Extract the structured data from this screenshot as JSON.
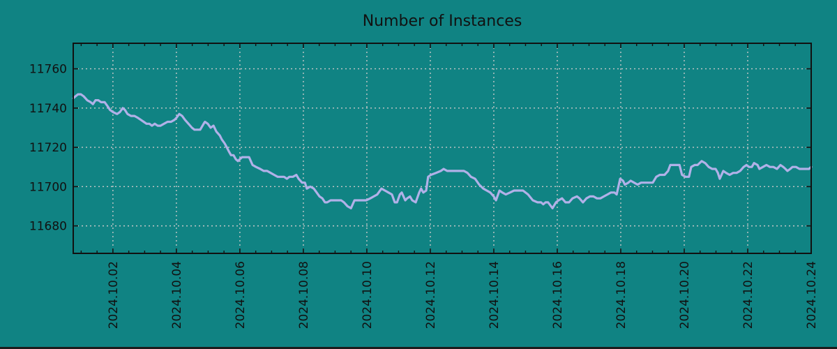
{
  "figure": {
    "title": "Number of Instances"
  },
  "chart_data": {
    "type": "line",
    "title": "Number of Instances",
    "xlabel": "",
    "ylabel": "",
    "x_unit": "date, 2024 October (fractional day-of-month; 0.75 = Sep 30 18:00)",
    "xlim": [
      0.75,
      24.0
    ],
    "ylim": [
      11666,
      11773
    ],
    "grid": true,
    "legend": null,
    "x_ticks": {
      "days": [
        2,
        4,
        6,
        8,
        10,
        12,
        14,
        16,
        18,
        20,
        22,
        24
      ],
      "labels": [
        "2024.10.02",
        "2024.10.04",
        "2024.10.06",
        "2024.10.08",
        "2024.10.10",
        "2024.10.12",
        "2024.10.14",
        "2024.10.16",
        "2024.10.18",
        "2024.10.20",
        "2024.10.22",
        "2024.10.24"
      ]
    },
    "x_minor_tick_interval_days": 0.5,
    "y_ticks": [
      11680,
      11700,
      11720,
      11740,
      11760
    ],
    "colors": {
      "background": "#108383",
      "line": "#b1b1e8",
      "grid": "#c8c8c8",
      "text": "#111111",
      "axis": "#111111",
      "bottom_edge": "#1c1c1c"
    },
    "series": [
      {
        "name": "instances",
        "points": [
          [
            0.75,
            11745
          ],
          [
            0.82,
            11746
          ],
          [
            0.9,
            11747
          ],
          [
            0.99,
            11747
          ],
          [
            1.08,
            11746
          ],
          [
            1.19,
            11744
          ],
          [
            1.3,
            11743
          ],
          [
            1.37,
            11742
          ],
          [
            1.45,
            11744
          ],
          [
            1.54,
            11744
          ],
          [
            1.63,
            11743
          ],
          [
            1.74,
            11743
          ],
          [
            1.83,
            11741
          ],
          [
            1.91,
            11739
          ],
          [
            2.0,
            11738
          ],
          [
            2.13,
            11737
          ],
          [
            2.22,
            11738
          ],
          [
            2.31,
            11740
          ],
          [
            2.38,
            11739
          ],
          [
            2.46,
            11737
          ],
          [
            2.57,
            11736
          ],
          [
            2.68,
            11736
          ],
          [
            2.79,
            11735
          ],
          [
            2.88,
            11734
          ],
          [
            2.97,
            11733
          ],
          [
            3.06,
            11732
          ],
          [
            3.15,
            11732
          ],
          [
            3.23,
            11731
          ],
          [
            3.32,
            11732
          ],
          [
            3.41,
            11731
          ],
          [
            3.5,
            11731
          ],
          [
            3.61,
            11732
          ],
          [
            3.72,
            11733
          ],
          [
            3.83,
            11733
          ],
          [
            3.94,
            11734
          ],
          [
            4.0,
            11735
          ],
          [
            4.09,
            11737
          ],
          [
            4.18,
            11736
          ],
          [
            4.27,
            11734
          ],
          [
            4.38,
            11732
          ],
          [
            4.49,
            11730
          ],
          [
            4.57,
            11729
          ],
          [
            4.66,
            11729
          ],
          [
            4.75,
            11729
          ],
          [
            4.86,
            11732
          ],
          [
            4.9,
            11733
          ],
          [
            4.99,
            11732
          ],
          [
            5.08,
            11730
          ],
          [
            5.17,
            11731
          ],
          [
            5.26,
            11728
          ],
          [
            5.37,
            11726
          ],
          [
            5.43,
            11724
          ],
          [
            5.52,
            11722
          ],
          [
            5.59,
            11720
          ],
          [
            5.65,
            11718
          ],
          [
            5.72,
            11716
          ],
          [
            5.8,
            11716
          ],
          [
            5.87,
            11714
          ],
          [
            5.94,
            11713
          ],
          [
            6.0,
            11714
          ],
          [
            6.07,
            11715
          ],
          [
            6.18,
            11715
          ],
          [
            6.29,
            11715
          ],
          [
            6.4,
            11711
          ],
          [
            6.51,
            11710
          ],
          [
            6.64,
            11709
          ],
          [
            6.75,
            11708
          ],
          [
            6.86,
            11708
          ],
          [
            6.97,
            11707
          ],
          [
            7.08,
            11706
          ],
          [
            7.19,
            11705
          ],
          [
            7.3,
            11705
          ],
          [
            7.39,
            11705
          ],
          [
            7.48,
            11704
          ],
          [
            7.56,
            11705
          ],
          [
            7.67,
            11705
          ],
          [
            7.78,
            11706
          ],
          [
            7.85,
            11704
          ],
          [
            7.96,
            11702
          ],
          [
            8.05,
            11702
          ],
          [
            8.11,
            11699
          ],
          [
            8.22,
            11700
          ],
          [
            8.33,
            11699
          ],
          [
            8.42,
            11697
          ],
          [
            8.51,
            11695
          ],
          [
            8.6,
            11694
          ],
          [
            8.68,
            11692
          ],
          [
            8.75,
            11692
          ],
          [
            8.86,
            11693
          ],
          [
            8.97,
            11693
          ],
          [
            9.08,
            11693
          ],
          [
            9.19,
            11693
          ],
          [
            9.28,
            11692
          ],
          [
            9.39,
            11690
          ],
          [
            9.5,
            11689
          ],
          [
            9.61,
            11693
          ],
          [
            9.72,
            11693
          ],
          [
            9.85,
            11693
          ],
          [
            9.98,
            11693
          ],
          [
            10.11,
            11694
          ],
          [
            10.22,
            11695
          ],
          [
            10.33,
            11696
          ],
          [
            10.46,
            11699
          ],
          [
            10.57,
            11698
          ],
          [
            10.68,
            11697
          ],
          [
            10.79,
            11696
          ],
          [
            10.88,
            11692
          ],
          [
            10.95,
            11692
          ],
          [
            11.04,
            11696
          ],
          [
            11.1,
            11697
          ],
          [
            11.21,
            11693
          ],
          [
            11.27,
            11694
          ],
          [
            11.36,
            11695
          ],
          [
            11.43,
            11693
          ],
          [
            11.54,
            11692
          ],
          [
            11.65,
            11697
          ],
          [
            11.71,
            11699
          ],
          [
            11.78,
            11697
          ],
          [
            11.87,
            11698
          ],
          [
            11.93,
            11705
          ],
          [
            12.02,
            11706
          ],
          [
            12.18,
            11707
          ],
          [
            12.33,
            11708
          ],
          [
            12.42,
            11709
          ],
          [
            12.53,
            11708
          ],
          [
            12.73,
            11708
          ],
          [
            12.92,
            11708
          ],
          [
            13.06,
            11708
          ],
          [
            13.17,
            11707
          ],
          [
            13.28,
            11705
          ],
          [
            13.41,
            11704
          ],
          [
            13.54,
            11701
          ],
          [
            13.67,
            11699
          ],
          [
            13.78,
            11698
          ],
          [
            13.89,
            11697
          ],
          [
            14.0,
            11695
          ],
          [
            14.07,
            11693
          ],
          [
            14.18,
            11698
          ],
          [
            14.27,
            11697
          ],
          [
            14.38,
            11696
          ],
          [
            14.51,
            11697
          ],
          [
            14.64,
            11698
          ],
          [
            14.77,
            11698
          ],
          [
            14.92,
            11698
          ],
          [
            15.08,
            11696
          ],
          [
            15.23,
            11693
          ],
          [
            15.38,
            11692
          ],
          [
            15.49,
            11692
          ],
          [
            15.56,
            11691
          ],
          [
            15.63,
            11692
          ],
          [
            15.71,
            11692
          ],
          [
            15.85,
            11689
          ],
          [
            15.96,
            11692
          ],
          [
            16.04,
            11693
          ],
          [
            16.15,
            11694
          ],
          [
            16.26,
            11692
          ],
          [
            16.37,
            11692
          ],
          [
            16.48,
            11694
          ],
          [
            16.62,
            11695
          ],
          [
            16.7,
            11694
          ],
          [
            16.81,
            11692
          ],
          [
            16.92,
            11694
          ],
          [
            17.03,
            11695
          ],
          [
            17.14,
            11695
          ],
          [
            17.25,
            11694
          ],
          [
            17.36,
            11694
          ],
          [
            17.47,
            11695
          ],
          [
            17.58,
            11696
          ],
          [
            17.69,
            11697
          ],
          [
            17.8,
            11697
          ],
          [
            17.87,
            11696
          ],
          [
            17.98,
            11704
          ],
          [
            18.07,
            11703
          ],
          [
            18.13,
            11701
          ],
          [
            18.24,
            11702
          ],
          [
            18.31,
            11703
          ],
          [
            18.42,
            11702
          ],
          [
            18.53,
            11701
          ],
          [
            18.64,
            11702
          ],
          [
            18.75,
            11702
          ],
          [
            18.9,
            11702
          ],
          [
            19.01,
            11702
          ],
          [
            19.12,
            11705
          ],
          [
            19.23,
            11706
          ],
          [
            19.38,
            11706
          ],
          [
            19.49,
            11708
          ],
          [
            19.56,
            11711
          ],
          [
            19.67,
            11711
          ],
          [
            19.85,
            11711
          ],
          [
            19.93,
            11706
          ],
          [
            20.04,
            11705
          ],
          [
            20.15,
            11705
          ],
          [
            20.22,
            11710
          ],
          [
            20.33,
            11711
          ],
          [
            20.42,
            11711
          ],
          [
            20.55,
            11713
          ],
          [
            20.66,
            11712
          ],
          [
            20.77,
            11710
          ],
          [
            20.88,
            11709
          ],
          [
            20.99,
            11709
          ],
          [
            21.06,
            11707
          ],
          [
            21.12,
            11704
          ],
          [
            21.23,
            11708
          ],
          [
            21.32,
            11707
          ],
          [
            21.43,
            11706
          ],
          [
            21.54,
            11707
          ],
          [
            21.65,
            11707
          ],
          [
            21.76,
            11708
          ],
          [
            21.87,
            11710
          ],
          [
            21.96,
            11711
          ],
          [
            22.04,
            11710
          ],
          [
            22.13,
            11710
          ],
          [
            22.2,
            11712
          ],
          [
            22.31,
            11711
          ],
          [
            22.37,
            11709
          ],
          [
            22.48,
            11710
          ],
          [
            22.59,
            11711
          ],
          [
            22.7,
            11710
          ],
          [
            22.81,
            11710
          ],
          [
            22.92,
            11709
          ],
          [
            23.03,
            11711
          ],
          [
            23.12,
            11710
          ],
          [
            23.19,
            11709
          ],
          [
            23.25,
            11708
          ],
          [
            23.34,
            11709
          ],
          [
            23.41,
            11710
          ],
          [
            23.52,
            11710
          ],
          [
            23.63,
            11709
          ],
          [
            23.74,
            11709
          ],
          [
            23.85,
            11709
          ],
          [
            23.93,
            11709
          ],
          [
            24.0,
            11710
          ]
        ]
      }
    ]
  }
}
